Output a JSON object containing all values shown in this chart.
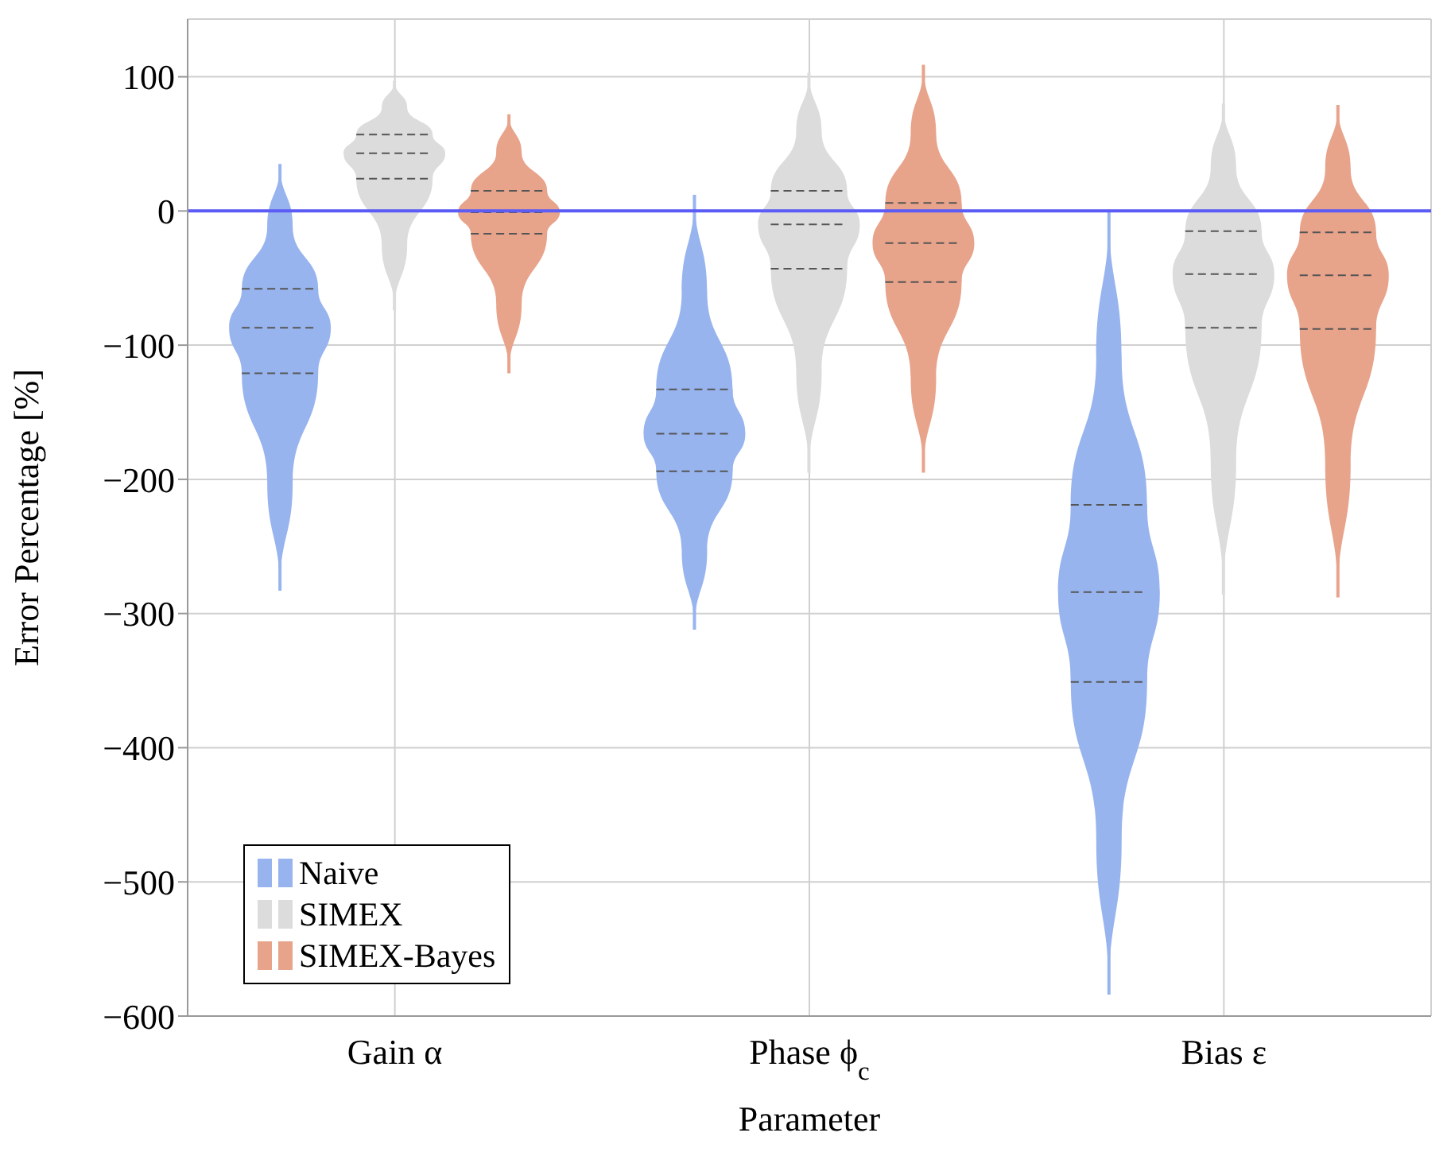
{
  "chart_data": {
    "type": "box",
    "categories": [
      "Gain α",
      "Phase ϕ$_{c}$",
      "Bias ε"
    ],
    "xlabel": "Parameter",
    "ylabel": "Error Percentage [%]",
    "ylim": [
      -600,
      143
    ],
    "yticks": [
      {
        "value": -600,
        "label": "−600"
      },
      {
        "value": -500,
        "label": "−500"
      },
      {
        "value": -400,
        "label": "−400"
      },
      {
        "value": -300,
        "label": "−300"
      },
      {
        "value": -200,
        "label": "−200"
      },
      {
        "value": -100,
        "label": "−100"
      },
      0,
      100
    ],
    "grid": true,
    "legend": "bottom left",
    "ref_lines": [
      {
        "axis": "y",
        "value": 0,
        "color": "#5b5bf5"
      }
    ],
    "series": [
      {
        "name": "Naive",
        "color": "#98b4ef",
        "boxes": [
          {
            "low": -283,
            "q1": -121,
            "median": -87,
            "q3": -58,
            "high": 35
          },
          {
            "low": -312,
            "q1": -194,
            "median": -166,
            "q3": -133,
            "high": 12
          },
          {
            "low": -584,
            "q1": -351,
            "median": -284,
            "q3": -219,
            "high": 0
          }
        ]
      },
      {
        "name": "SIMEX",
        "color": "#dcdcdc",
        "boxes": [
          {
            "low": -74,
            "q1": 24,
            "median": 43,
            "q3": 57,
            "high": 97
          },
          {
            "low": -195,
            "q1": -43,
            "median": -10,
            "q3": 15,
            "high": 103
          },
          {
            "low": -286,
            "q1": -87,
            "median": -47,
            "q3": -15,
            "high": 80
          }
        ]
      },
      {
        "name": "SIMEX-Bayes",
        "color": "#e8a38b",
        "boxes": [
          {
            "low": -121,
            "q1": -17,
            "median": -1,
            "q3": 15,
            "high": 72
          },
          {
            "low": -195,
            "q1": -53,
            "median": -24,
            "q3": 6,
            "high": 109
          },
          {
            "low": -288,
            "q1": -88,
            "median": -48,
            "q3": -16,
            "high": 79
          }
        ]
      }
    ]
  }
}
